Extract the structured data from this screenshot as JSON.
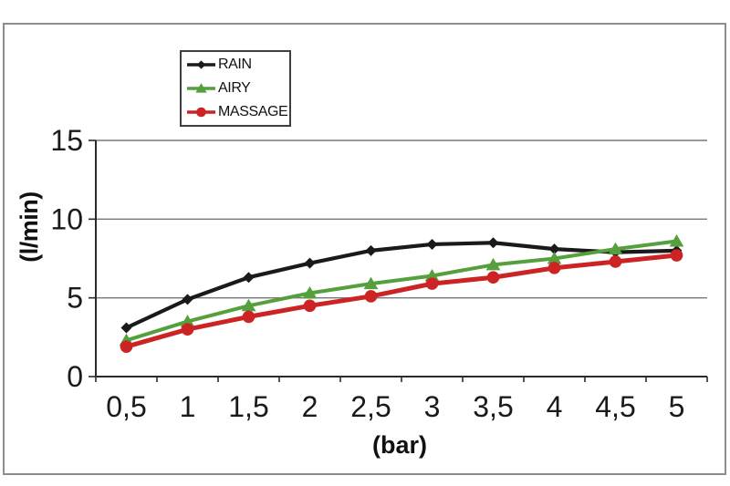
{
  "theme": {
    "background": "#ffffff",
    "frame_border_color": "#8d8d8d",
    "legend_border_color": "#3f3f3f",
    "grid_color": "#787878",
    "axis_color": "#2a2a2a",
    "text_color": "#1a1a1a"
  },
  "chart_data": {
    "type": "line",
    "title": "",
    "xlabel": "(bar)",
    "ylabel": "(l/min)",
    "x_categories": [
      "0,5",
      "1",
      "1,5",
      "2",
      "2,5",
      "3",
      "3,5",
      "4",
      "4,5",
      "5"
    ],
    "y_ticks": [
      0,
      5,
      10,
      15
    ],
    "ylim": [
      0,
      15
    ],
    "grid": true,
    "legend_position": "top-inside",
    "series": [
      {
        "name": "RAIN",
        "marker": "diamond",
        "color": "#1a1a1a",
        "line_width": 4.2,
        "marker_size": 6,
        "values": [
          3.1,
          4.9,
          6.3,
          7.2,
          8.0,
          8.4,
          8.5,
          8.1,
          7.9,
          8.0
        ]
      },
      {
        "name": "AIRY",
        "marker": "triangle",
        "color": "#55a03c",
        "line_width": 4,
        "marker_size": 7.5,
        "values": [
          2.3,
          3.5,
          4.5,
          5.3,
          5.9,
          6.4,
          7.1,
          7.5,
          8.1,
          8.6
        ]
      },
      {
        "name": "MASSAGE",
        "marker": "circle",
        "color": "#cc2424",
        "line_width": 5,
        "marker_size": 6.8,
        "values": [
          1.9,
          3.0,
          3.8,
          4.5,
          5.1,
          5.9,
          6.3,
          6.9,
          7.3,
          7.7
        ]
      }
    ]
  }
}
